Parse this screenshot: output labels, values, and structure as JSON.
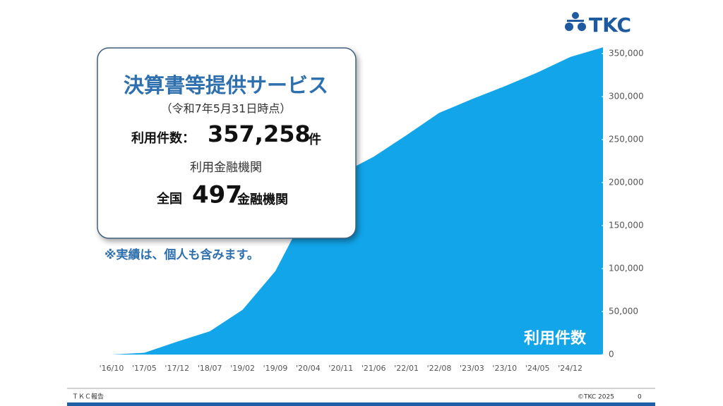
{
  "logo": "TKC",
  "chart_data": {
    "type": "area",
    "categories": [
      "'16/10",
      "'17/05",
      "'17/12",
      "'18/07",
      "'19/02",
      "'19/09",
      "'20/04",
      "'20/11",
      "'21/06",
      "'22/01",
      "'22/08",
      "'23/03",
      "'23/10",
      "'24/05",
      "'24/12",
      null
    ],
    "series": [
      {
        "name": "利用件数",
        "color": "#12a5ea",
        "values": [
          0,
          2000,
          15000,
          27000,
          52000,
          97000,
          170000,
          210000,
          230000,
          255000,
          281000,
          297000,
          312000,
          328000,
          346000,
          357258
        ]
      }
    ],
    "ylim": [
      0,
      350000
    ],
    "yticks": [
      0,
      {
        "value": 50000,
        "label": "50,000"
      },
      {
        "value": 100000,
        "label": "100,000"
      },
      {
        "value": 150000,
        "label": "150,000"
      },
      {
        "value": 200000,
        "label": "200,000"
      },
      {
        "value": 250000,
        "label": "250,000"
      },
      {
        "value": 300000,
        "label": "300,000"
      },
      {
        "value": 350000,
        "label": "350,000"
      }
    ],
    "note": "※実績は、個人も含みます。"
  },
  "panel": {
    "title": "決算書等提供サービス",
    "date": "（令和7年5月31日時点）",
    "count_label": "利用件数：",
    "count": "357,258",
    "count_unit": "件",
    "institutions_label": "利用金融機関",
    "nation": "全国",
    "institutions": "497",
    "institutions_unit": "金融機関"
  },
  "footer": {
    "left": "ＴＫＣ報告",
    "copyright": "©TKC 2025",
    "page": "0"
  }
}
